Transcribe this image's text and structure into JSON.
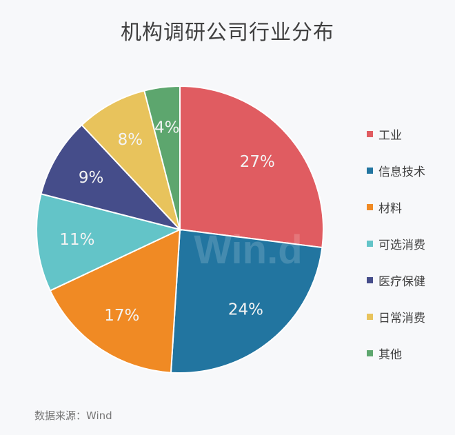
{
  "chart_data": {
    "type": "pie",
    "title": "机构调研公司行业分布",
    "categories": [
      "工业",
      "信息技术",
      "材料",
      "可选消费",
      "医疗保健",
      "日常消费",
      "其他"
    ],
    "values": [
      27,
      24,
      17,
      11,
      9,
      8,
      4
    ],
    "labels": [
      "27%",
      "24%",
      "17%",
      "11%",
      "9%",
      "8%",
      "4%"
    ],
    "colors": [
      "#e05c61",
      "#2275a0",
      "#f08a24",
      "#63c4c8",
      "#454d8a",
      "#e8c35c",
      "#5da66e"
    ],
    "label_colors": [
      "#f3f3f3",
      "#f3f3f3",
      "#f3f3f3",
      "#f3f3f3",
      "#f3f3f3",
      "#f3f3f3",
      "#f3f3f3"
    ],
    "legend_position": "right",
    "start_angle": "top, clockwise"
  },
  "watermark": "Win.d",
  "source": "数据来源：Wind"
}
